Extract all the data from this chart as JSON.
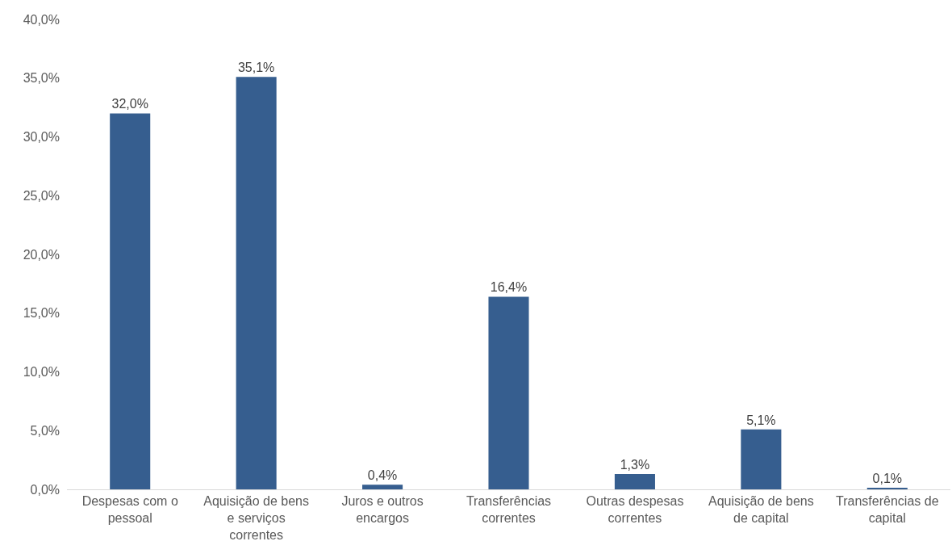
{
  "chart_data": {
    "type": "bar",
    "categories": [
      "Despesas com o pessoal",
      "Aquisição de bens e serviços correntes",
      "Juros e outros encargos",
      "Transferências correntes",
      "Outras despesas correntes",
      "Aquisição de bens de capital",
      "Transferências de capital"
    ],
    "values": [
      32.0,
      35.1,
      0.4,
      16.4,
      1.3,
      5.1,
      0.1
    ],
    "value_labels": [
      "32,0%",
      "35,1%",
      "0,4%",
      "16,4%",
      "1,3%",
      "5,1%",
      "0,1%"
    ],
    "color": "#365e8f",
    "ylim": [
      0,
      40
    ],
    "yticks": [
      {
        "value": 0,
        "label": "0,0%"
      },
      {
        "value": 5,
        "label": "5,0%"
      },
      {
        "value": 10,
        "label": "10,0%"
      },
      {
        "value": 15,
        "label": "15,0%"
      },
      {
        "value": 20,
        "label": "20,0%"
      },
      {
        "value": 25,
        "label": "25,0%"
      },
      {
        "value": 30,
        "label": "30,0%"
      },
      {
        "value": 35,
        "label": "35,0%"
      },
      {
        "value": 40,
        "label": "40,0%"
      }
    ],
    "grid": false
  }
}
